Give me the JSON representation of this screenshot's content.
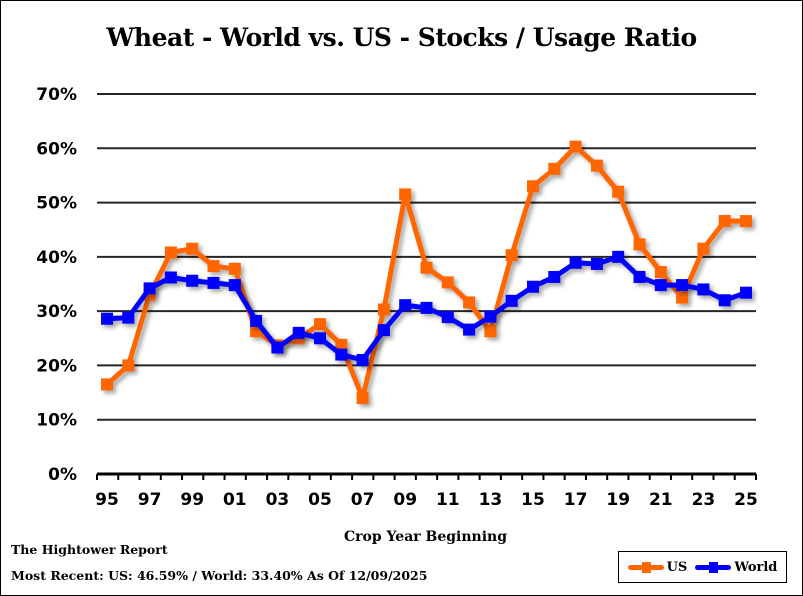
{
  "chart_data": {
    "type": "line",
    "title": "Wheat - World vs. US - Stocks / Usage Ratio",
    "xlabel": "Crop Year Beginning",
    "ylabel": "",
    "ylim": [
      0,
      70
    ],
    "y_ticks": [
      "0%",
      "10%",
      "20%",
      "30%",
      "40%",
      "50%",
      "60%",
      "70%"
    ],
    "y_tick_values": [
      0,
      10,
      20,
      30,
      40,
      50,
      60,
      70
    ],
    "x": [
      "95",
      "96",
      "97",
      "98",
      "99",
      "00",
      "01",
      "02",
      "03",
      "04",
      "05",
      "06",
      "07",
      "08",
      "09",
      "10",
      "11",
      "12",
      "13",
      "14",
      "15",
      "16",
      "17",
      "18",
      "19",
      "20",
      "21",
      "22",
      "23",
      "24",
      "25"
    ],
    "x_tick_labels": [
      "95",
      "97",
      "99",
      "01",
      "03",
      "05",
      "07",
      "09",
      "11",
      "13",
      "15",
      "17",
      "19",
      "21",
      "23",
      "25"
    ],
    "grid": true,
    "legend_position": "bottom-right",
    "series": [
      {
        "name": "US",
        "color": "#FF6600",
        "values": [
          16.5,
          20.0,
          33.0,
          40.8,
          41.5,
          38.3,
          37.8,
          26.3,
          23.7,
          25.0,
          27.6,
          23.8,
          14.0,
          30.3,
          51.5,
          38.0,
          35.3,
          31.6,
          26.3,
          40.3,
          53.0,
          56.2,
          60.3,
          56.8,
          52.0,
          42.3,
          37.2,
          32.5,
          41.5,
          46.6,
          46.59
        ]
      },
      {
        "name": "World",
        "color": "#0000FF",
        "values": [
          28.6,
          28.8,
          34.2,
          36.2,
          35.6,
          35.2,
          34.8,
          28.2,
          23.3,
          26.0,
          25.0,
          22.0,
          21.0,
          26.5,
          31.1,
          30.6,
          28.9,
          26.6,
          29.0,
          31.9,
          34.5,
          36.3,
          38.9,
          38.7,
          40.0,
          36.3,
          34.8,
          34.8,
          34.0,
          32.0,
          33.4
        ]
      }
    ]
  },
  "footer": {
    "source": "The Hightower Report",
    "most_recent": "Most Recent: US: 46.59% / World: 33.40% As Of 12/09/2025"
  },
  "legend": {
    "items": [
      {
        "label": "US",
        "color": "#FF6600"
      },
      {
        "label": "World",
        "color": "#0000FF"
      }
    ]
  }
}
